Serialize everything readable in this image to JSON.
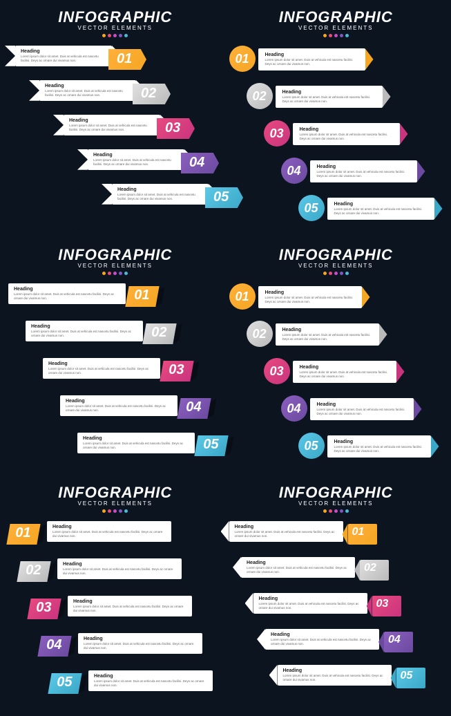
{
  "title": "INFOGRAPHIC",
  "subtitle": "VECTOR ELEMENTS",
  "dot_colors": [
    "#f5a623",
    "#e84a7f",
    "#c94bc9",
    "#7b5bc9",
    "#4db8d8"
  ],
  "heading": "Heading",
  "body": "Lorem ipsum dolor sit amet. Duis at vehicula est nascetu facilisi. Deys ac ornare dui vivamus non.",
  "steps": [
    {
      "n": "01",
      "c1": "#ffb03a",
      "c2": "#f5a623"
    },
    {
      "n": "02",
      "c1": "#e0e0e0",
      "c2": "#bababa"
    },
    {
      "n": "03",
      "c1": "#e84a7f",
      "c2": "#c9347f"
    },
    {
      "n": "04",
      "c1": "#8b5fbf",
      "c2": "#6b4a9f"
    },
    {
      "n": "05",
      "c1": "#5bc8e8",
      "c2": "#3ba8c8"
    }
  ],
  "offsets_a": [
    10,
    45,
    80,
    115,
    150
  ],
  "offsets_b": [
    0,
    25,
    50,
    75,
    100
  ],
  "bg": "#0c1420",
  "card_bg": "#ffffff"
}
